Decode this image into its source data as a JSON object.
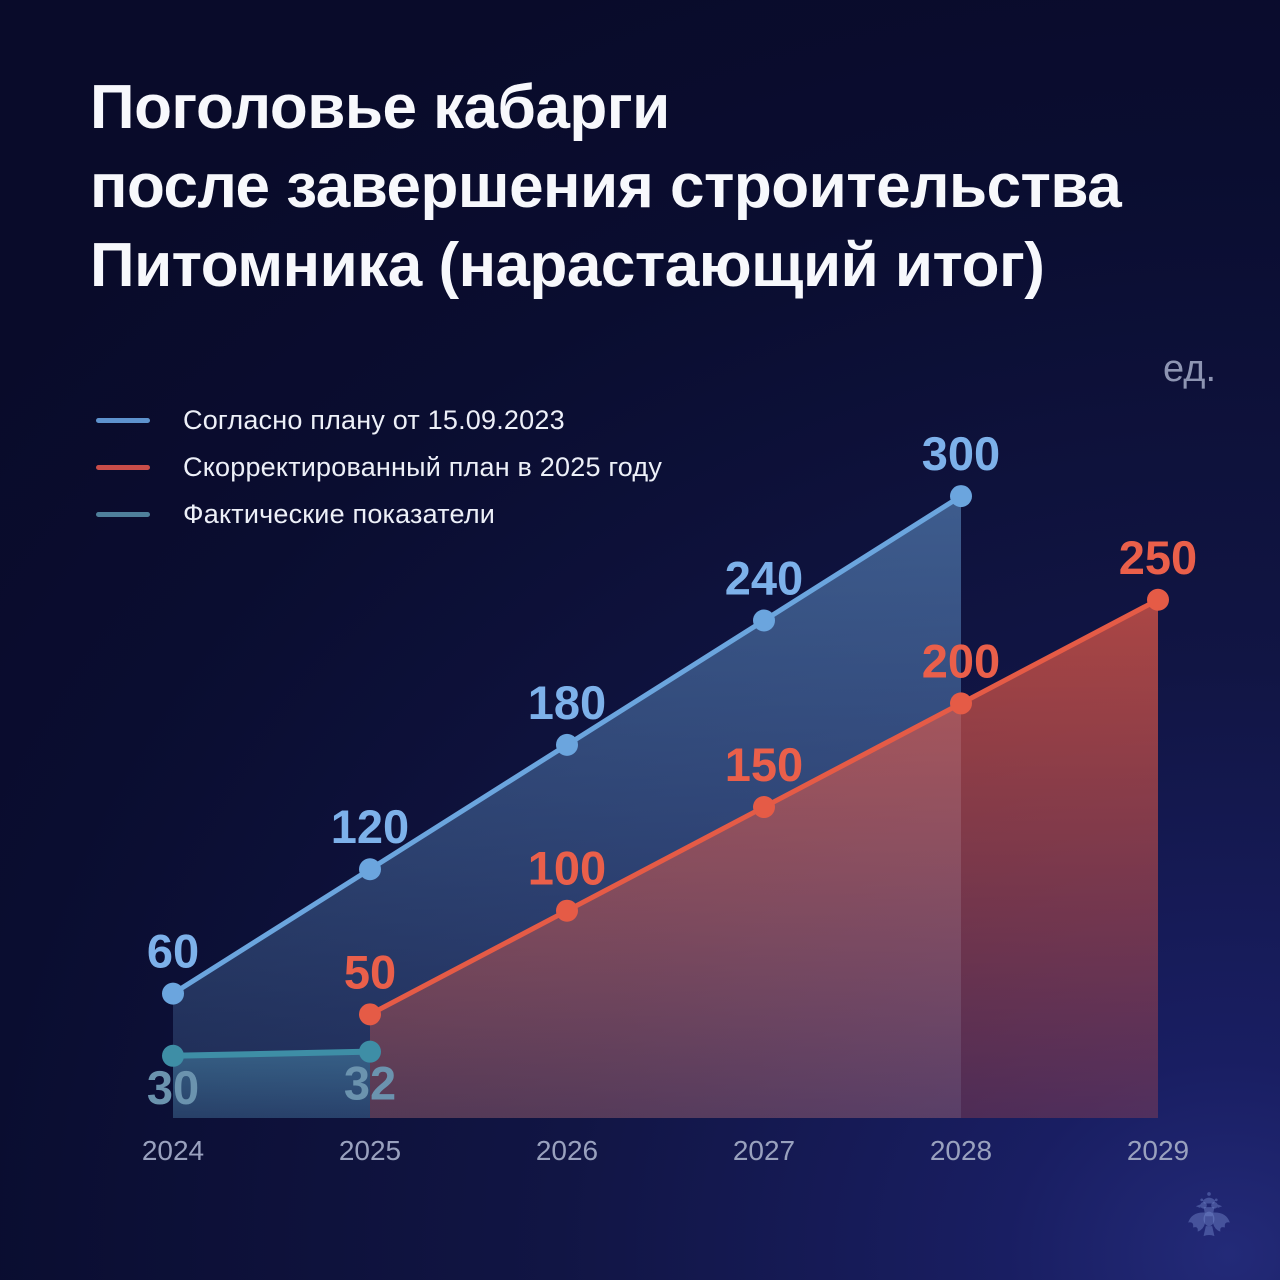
{
  "title": {
    "lines": [
      "Поголовье кабарги",
      "после завершения строительства",
      "Питомника (нарастающий итог)"
    ]
  },
  "unit_label": "ед.",
  "logo": {
    "emblem": "double-headed-eagle"
  },
  "chart_data": {
    "type": "line",
    "title": "Поголовье кабарги после завершения строительства Питомника (нарастающий итог)",
    "ylabel": "ед.",
    "xlabel": "",
    "categories": [
      "2024",
      "2025",
      "2026",
      "2027",
      "2028",
      "2029"
    ],
    "x_start": 2024,
    "ylim": [
      0,
      300
    ],
    "grid": false,
    "legend_position": "top-left",
    "area_fill": true,
    "series": [
      {
        "id": "plan-2023",
        "name": "Согласно плану от 15.09.2023",
        "color": "#6BA5DE",
        "label_color": "#7DB1EA",
        "swatch_color": "#5E93CE",
        "fill_top": "rgba(109,166,222,0.50)",
        "fill_bottom": "rgba(109,166,222,0.18)",
        "line_width": 5,
        "label_position": "above",
        "points": [
          {
            "x": 2024,
            "y": 60
          },
          {
            "x": 2025,
            "y": 120
          },
          {
            "x": 2026,
            "y": 180
          },
          {
            "x": 2027,
            "y": 240
          },
          {
            "x": 2028,
            "y": 300
          }
        ]
      },
      {
        "id": "plan-adjusted-2025",
        "name": "Скорректированный план в 2025 году",
        "color": "#E55B46",
        "label_color": "#EA5F4A",
        "swatch_color": "#C94D49",
        "fill_top": "rgba(232,90,70,0.72)",
        "fill_bottom": "rgba(232,90,70,0.26)",
        "line_width": 5,
        "label_position": "above",
        "points": [
          {
            "x": 2025,
            "y": 50
          },
          {
            "x": 2026,
            "y": 100
          },
          {
            "x": 2027,
            "y": 150
          },
          {
            "x": 2028,
            "y": 200
          },
          {
            "x": 2029,
            "y": 250
          }
        ]
      },
      {
        "id": "actual",
        "name": "Фактические показатели",
        "color": "#3E8EA6",
        "label_color": "#6B93AE",
        "swatch_color": "#4F809B",
        "fill_top": "rgba(82,158,188,0.42)",
        "fill_bottom": "rgba(82,158,188,0.18)",
        "line_width": 6,
        "label_position": "below",
        "points": [
          {
            "x": 2024,
            "y": 30
          },
          {
            "x": 2025,
            "y": 32
          }
        ]
      }
    ]
  }
}
